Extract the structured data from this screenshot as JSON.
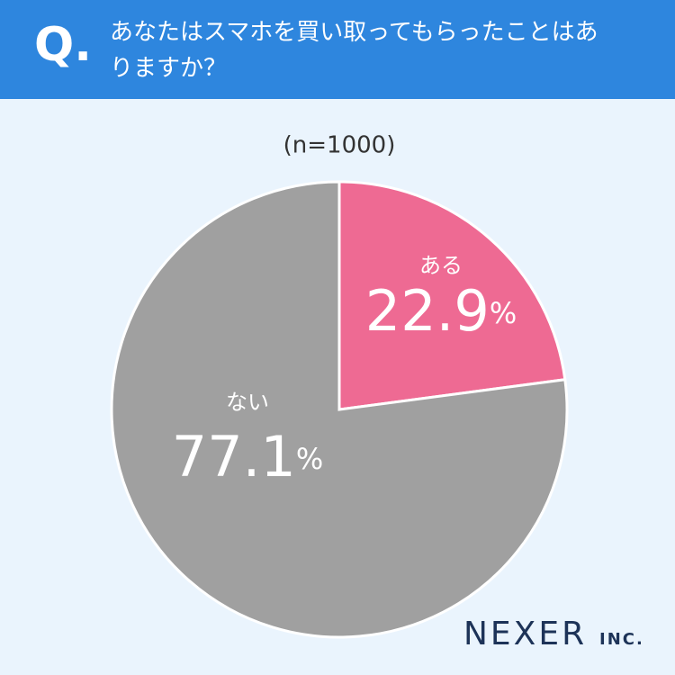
{
  "question_mark": "Q.",
  "logo": "NEXER",
  "logo_suffix": "INC.",
  "chart_data": {
    "type": "pie",
    "title": "あなたはスマホを買い取ってもらったことはありますか？",
    "subtitle": "(n=1000)",
    "categories": [
      "ある",
      "ない"
    ],
    "values": [
      22.9,
      77.1
    ],
    "value_labels": [
      "22.9%",
      "77.1%"
    ],
    "colors": [
      "#ee6a93",
      "#a0a0a0"
    ]
  }
}
